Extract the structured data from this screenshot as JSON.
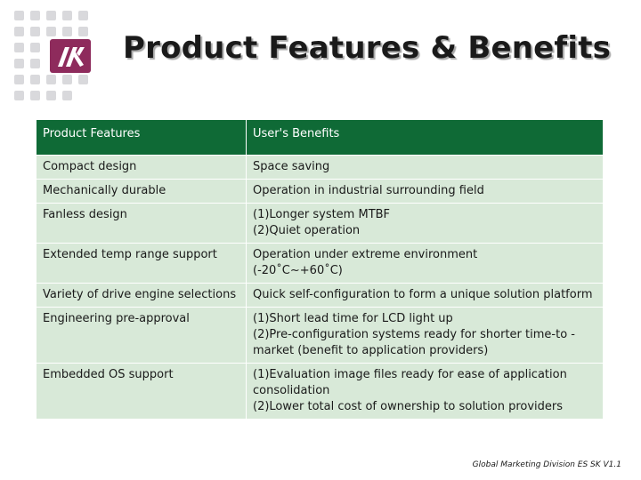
{
  "title": "Product Features & Benefits",
  "table": {
    "headers": [
      "Product Features",
      "User's Benefits"
    ],
    "rows": [
      {
        "feature": "Compact design",
        "benefit": [
          "Space saving"
        ]
      },
      {
        "feature": "Mechanically durable",
        "benefit": [
          "Operation in industrial surrounding field"
        ]
      },
      {
        "feature": "Fanless design",
        "benefit": [
          "(1)Longer system MTBF",
          "(2)Quiet operation"
        ]
      },
      {
        "feature": "Extended temp range support",
        "benefit": [
          "Operation under extreme environment",
          "(-20˚C~+60˚C)"
        ]
      },
      {
        "feature": "Variety of drive engine selections",
        "benefit": [
          "Quick self-configuration to form a unique solution platform"
        ]
      },
      {
        "feature": "Engineering pre-approval",
        "benefit": [
          "(1)Short lead time for LCD light up",
          "(2)Pre-configuration systems ready for shorter time-to -market (benefit to application providers)"
        ]
      },
      {
        "feature": "Embedded OS support",
        "benefit": [
          "(1)Evaluation image files ready for ease of application consolidation",
          "(2)Lower total cost of ownership to solution providers"
        ]
      }
    ]
  },
  "footer": "Global Marketing Division ES SK V1.1",
  "colors": {
    "header_bg": "#0f6a36",
    "row_bg": "#d8e9d8",
    "logo": "#8e2b5c"
  }
}
